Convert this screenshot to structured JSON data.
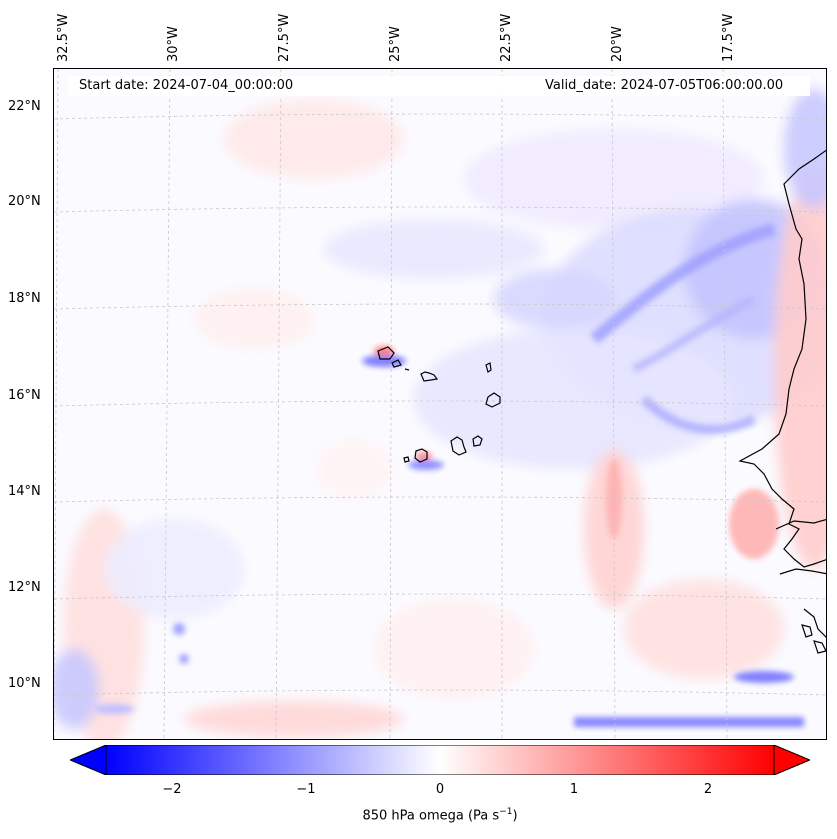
{
  "title": {
    "start_date": "Start date: 2024-07-04_00:00:00",
    "valid_date": "Valid_date: 2024-07-05T06:00:00.00"
  },
  "axes": {
    "longitude_labels": [
      "32.5°W",
      "30°W",
      "27.5°W",
      "25°W",
      "22.5°W",
      "20°W",
      "17.5°W"
    ],
    "latitude_labels": [
      "22°N",
      "20°N",
      "18°N",
      "16°N",
      "14°N",
      "12°N",
      "10°N"
    ]
  },
  "colorbar": {
    "label_prefix": "850 hPa omega (Pa s",
    "label_exponent": "−1",
    "label_suffix": ")",
    "ticks": [
      "−2",
      "−1",
      "0",
      "1",
      "2"
    ],
    "min": -2.6,
    "max": 2.6,
    "extend": "both",
    "colormap": "bwr",
    "colors": {
      "low": "#0000ff",
      "mid": "#ffffff",
      "high": "#ff0000"
    }
  },
  "map": {
    "field": "850 hPa omega",
    "region": "Cabo Verde and West African coast",
    "coastline_color": "#000000",
    "gridline_color": "#c8c8c8"
  }
}
